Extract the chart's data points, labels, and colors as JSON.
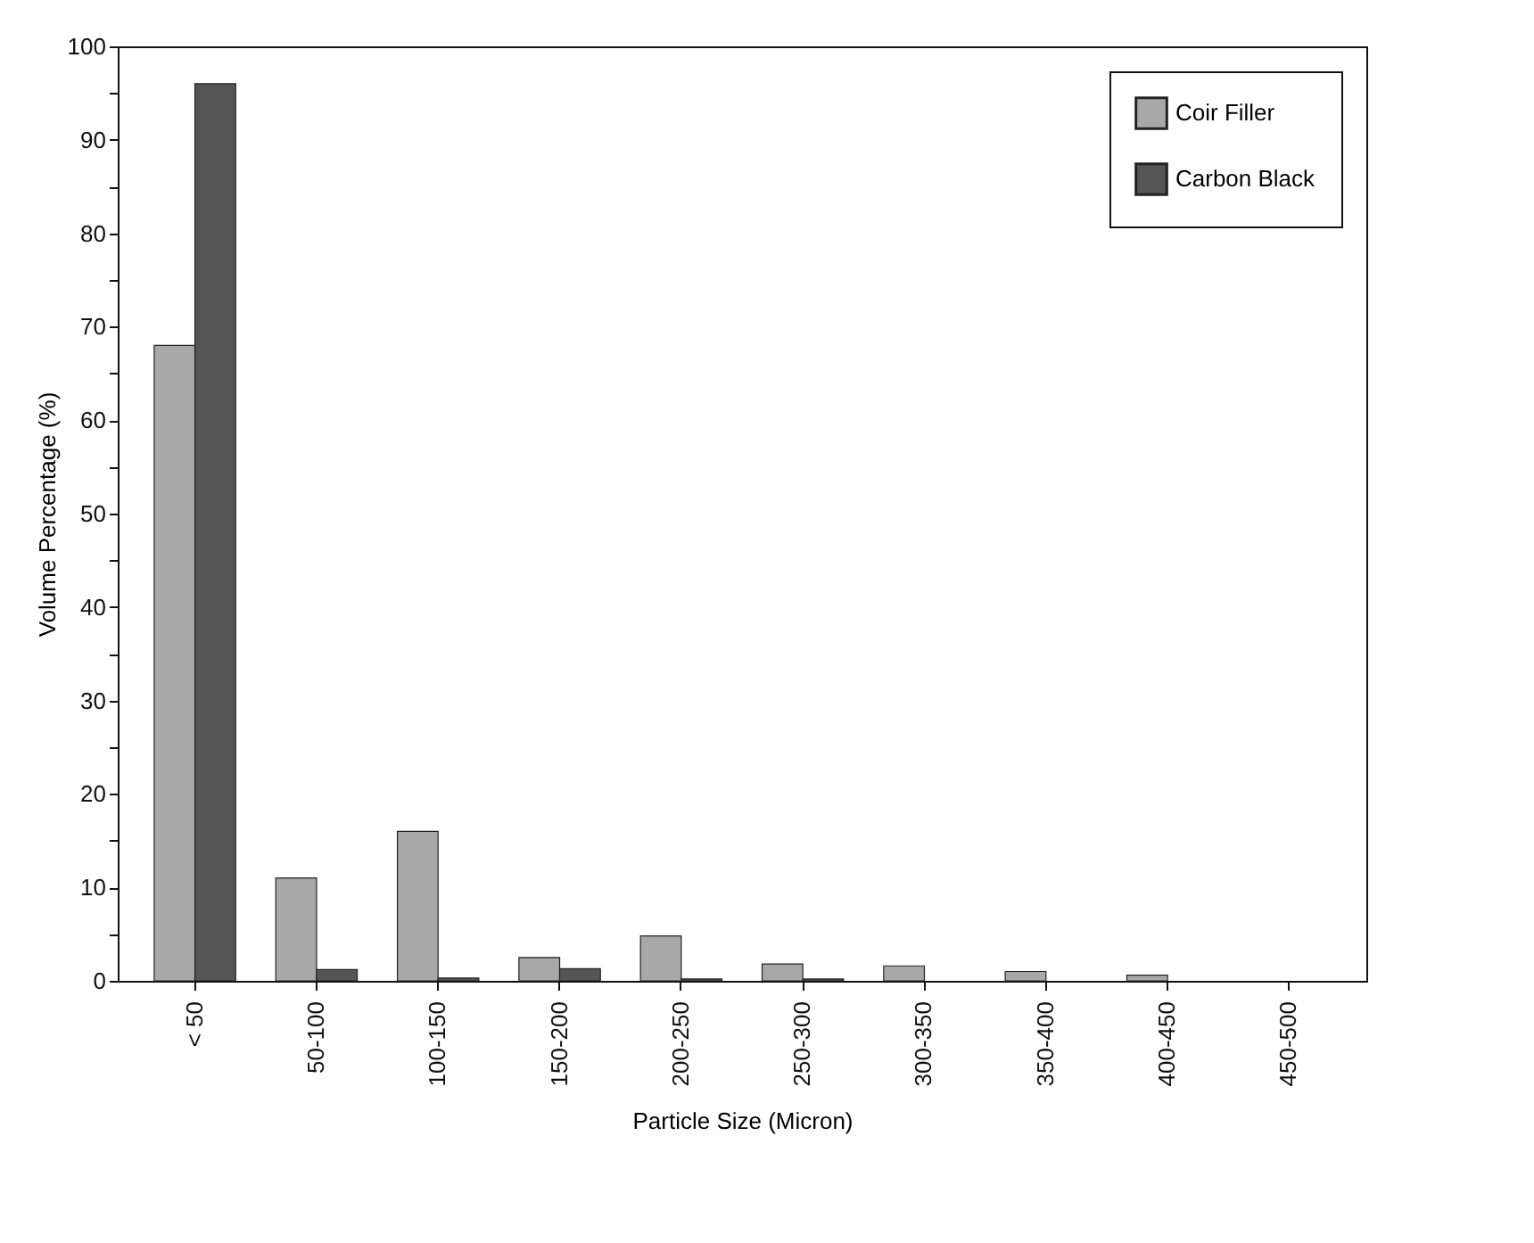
{
  "chart_data": {
    "type": "bar",
    "xlabel": "Particle Size (Micron)",
    "ylabel": "Volume Percentage (%)",
    "categories": [
      "< 50",
      "50-100",
      "100-150",
      "150-200",
      "200-250",
      "250-300",
      "300-350",
      "350-400",
      "400-450",
      "450-500"
    ],
    "series": [
      {
        "name": "Coir Filler",
        "color": "#a8a8a8",
        "values": [
          68,
          11,
          16,
          2.5,
          4.8,
          1.8,
          1.6,
          1,
          0.6,
          0
        ]
      },
      {
        "name": "Carbon Black",
        "color": "#555555",
        "values": [
          96,
          1.2,
          0.3,
          1.3,
          0.2,
          0.2,
          0,
          0,
          0,
          0
        ]
      }
    ],
    "ylim": [
      0,
      100
    ],
    "yticks": [
      0,
      {
        "value": 5,
        "label": null
      },
      10,
      {
        "value": 15,
        "label": null
      },
      20,
      {
        "value": 25,
        "label": null
      },
      30,
      {
        "value": 35,
        "label": null
      },
      40,
      {
        "value": 45,
        "label": null
      },
      50,
      {
        "value": 55,
        "label": null
      },
      60,
      {
        "value": 65,
        "label": null
      },
      70,
      {
        "value": 75,
        "label": null
      },
      80,
      {
        "value": 85,
        "label": null
      },
      90,
      {
        "value": 95,
        "label": null
      },
      100
    ],
    "grid": false,
    "legend": "top right"
  }
}
